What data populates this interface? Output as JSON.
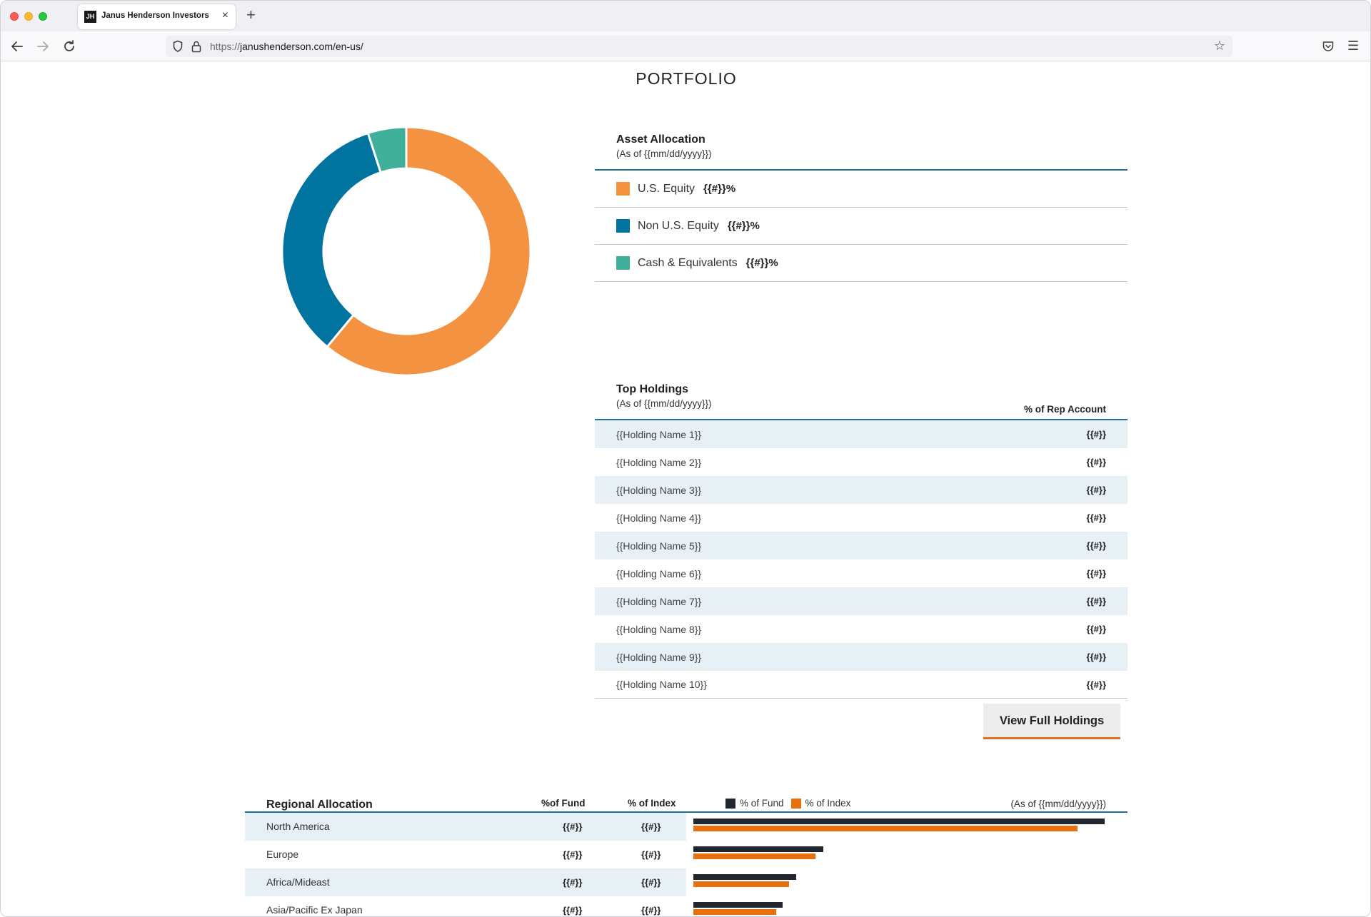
{
  "browser": {
    "tab_title": "Janus Henderson Investors",
    "favicon_text": "JH",
    "url_scheme": "https://",
    "url_rest": "janushenderson.com/en-us/"
  },
  "page": {
    "title": "PORTFOLIO"
  },
  "asset_allocation": {
    "heading": "Asset Allocation",
    "as_of": "(As of {{mm/dd/yyyy}})",
    "items": [
      {
        "label": "U.S. Equity",
        "value": "{{#}}%",
        "color": "#f39241"
      },
      {
        "label": "Non U.S. Equity",
        "value": "{{#}}%",
        "color": "#00739f"
      },
      {
        "label": "Cash & Equivalents",
        "value": "{{#}}%",
        "color": "#40b09a"
      }
    ]
  },
  "chart_data": {
    "type": "pie",
    "categories": [
      "U.S. Equity",
      "Non U.S. Equity",
      "Cash & Equivalents"
    ],
    "values": [
      61,
      34,
      5
    ],
    "colors": [
      "#f39241",
      "#00739f",
      "#40b09a"
    ]
  },
  "top_holdings": {
    "heading": "Top Holdings",
    "as_of": "(As of {{mm/dd/yyyy}})",
    "column_label": "% of Rep Account",
    "rows": [
      {
        "name": "{{Holding Name 1}}",
        "value": "{{#}}"
      },
      {
        "name": "{{Holding Name 2}}",
        "value": "{{#}}"
      },
      {
        "name": "{{Holding Name 3}}",
        "value": "{{#}}"
      },
      {
        "name": "{{Holding Name 4}}",
        "value": "{{#}}"
      },
      {
        "name": "{{Holding Name 5}}",
        "value": "{{#}}"
      },
      {
        "name": "{{Holding Name 6}}",
        "value": "{{#}}"
      },
      {
        "name": "{{Holding Name 7}}",
        "value": "{{#}}"
      },
      {
        "name": "{{Holding Name 8}}",
        "value": "{{#}}"
      },
      {
        "name": "{{Holding Name 9}}",
        "value": "{{#}}"
      },
      {
        "name": "{{Holding Name 10}}",
        "value": "{{#}}"
      }
    ],
    "button_label": "View Full Holdings"
  },
  "regional_allocation": {
    "heading": "Regional Allocation",
    "col_fund": "%of Fund",
    "col_index": "% of Index",
    "legend_fund": "% of Fund",
    "legend_index": "% of Index",
    "as_of": "(As of {{mm/dd/yyyy}})",
    "fund_color": "#22262e",
    "index_color": "#e8700e",
    "rows": [
      {
        "name": "North America",
        "fund": "{{#}}",
        "index": "{{#}}",
        "fund_bar": 0.98,
        "index_bar": 0.915
      },
      {
        "name": "Europe",
        "fund": "{{#}}",
        "index": "{{#}}",
        "fund_bar": 0.31,
        "index_bar": 0.29
      },
      {
        "name": "Africa/Mideast",
        "fund": "{{#}}",
        "index": "{{#}}",
        "fund_bar": 0.245,
        "index_bar": 0.228
      },
      {
        "name": "Asia/Pacific Ex Japan",
        "fund": "{{#}}",
        "index": "{{#}}",
        "fund_bar": 0.212,
        "index_bar": 0.198
      }
    ]
  }
}
